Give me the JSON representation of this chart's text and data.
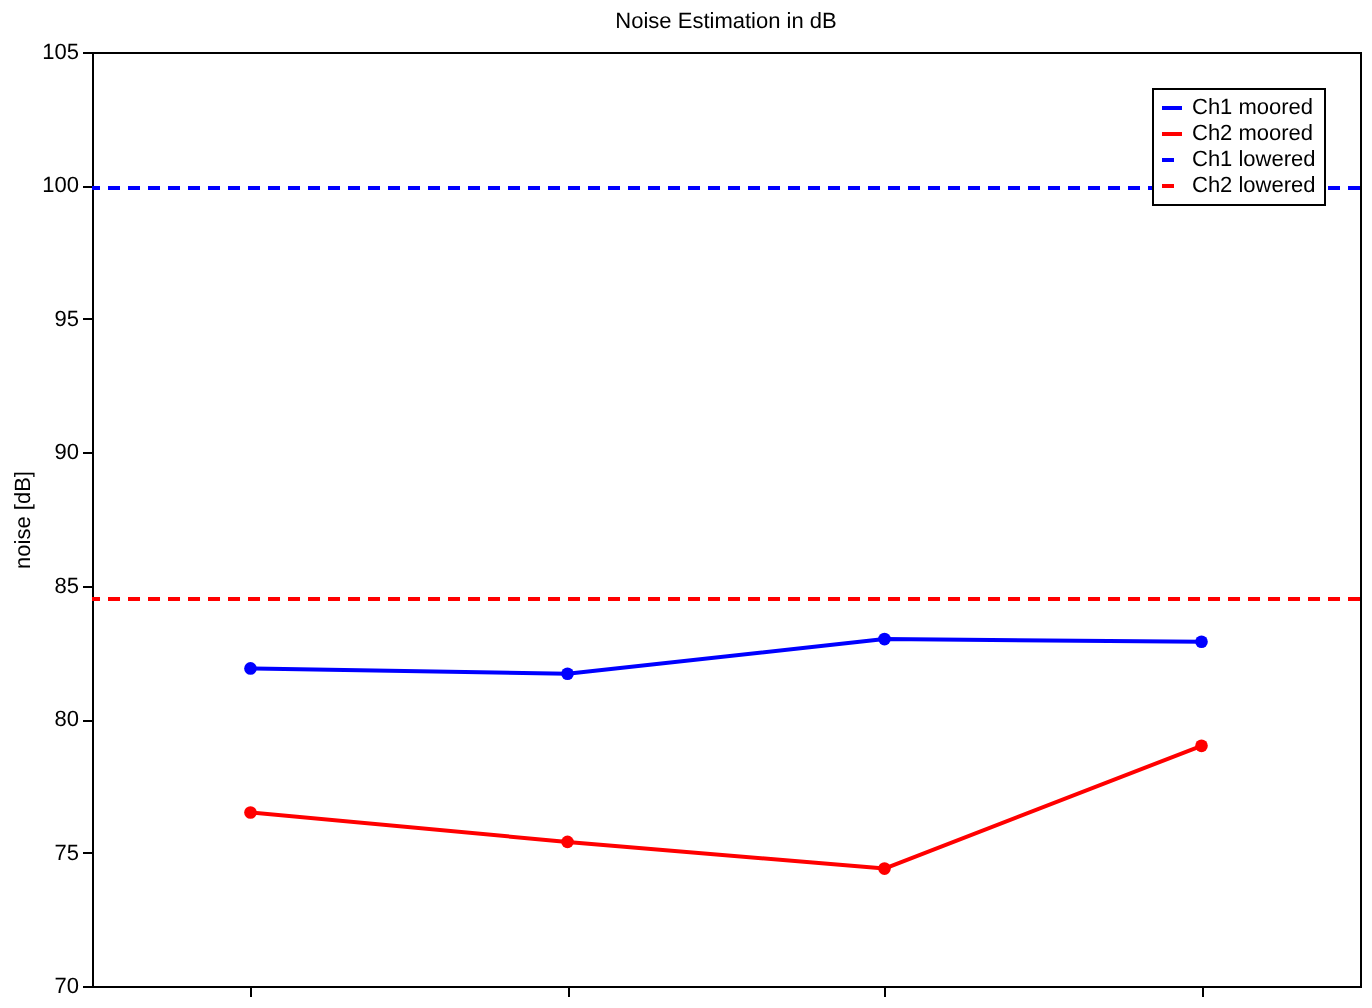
{
  "chart_data": {
    "type": "line",
    "title": "Noise Estimation in dB",
    "ylabel": "noise [dB]",
    "categories": [
      null,
      null,
      null,
      null
    ],
    "series": [
      {
        "name": "Ch1 moored",
        "color": "#0000ff",
        "values": [
          81.9,
          81.7,
          83.0,
          82.9
        ]
      },
      {
        "name": "Ch2 moored",
        "color": "#ff0000",
        "values": [
          76.5,
          75.4,
          74.4,
          79.0
        ]
      }
    ],
    "ref_lines": [
      {
        "axis": "y",
        "value": 99.9,
        "label": "Ch1 lowered",
        "color": "#0000ff",
        "line_style": "dashed"
      },
      {
        "axis": "y",
        "value": 84.5,
        "label": "Ch2 lowered",
        "color": "#ff0000",
        "line_style": "dashed"
      }
    ],
    "ylim": [
      70,
      105
    ],
    "yticks": [
      70,
      75,
      80,
      85,
      90,
      95,
      100,
      105
    ],
    "grid": false,
    "legend": "top right",
    "marker": "circle",
    "line_style": "solid",
    "tick_labels": "y"
  }
}
